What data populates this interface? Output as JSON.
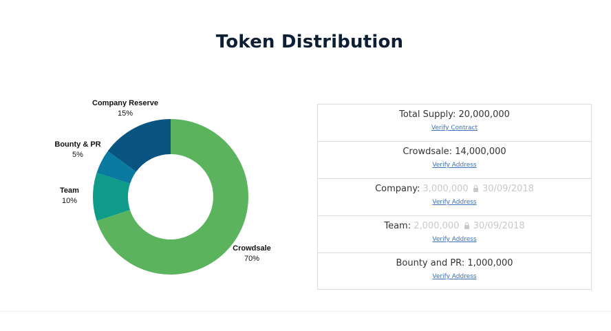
{
  "title": "Token Distribution",
  "chart_data": {
    "type": "pie",
    "variant": "donut",
    "slices": [
      {
        "name": "Crowdsale",
        "value": 70,
        "label": "70%",
        "color": "#5cb35d"
      },
      {
        "name": "Team",
        "value": 10,
        "label": "10%",
        "color": "#0e9b8a"
      },
      {
        "name": "Bounty & PR",
        "value": 5,
        "label": "5%",
        "color": "#0b7aa0"
      },
      {
        "name": "Company Reserve",
        "value": 15,
        "label": "15%",
        "color": "#0a5482"
      }
    ]
  },
  "supply": {
    "rows": [
      {
        "label": "Total Supply:",
        "amount": "20,000,000",
        "locked_amount": "",
        "lock_date": "",
        "link": "Verify Contract"
      },
      {
        "label": "Crowdsale:",
        "amount": "14,000,000",
        "locked_amount": "",
        "lock_date": "",
        "link": "Verify Address"
      },
      {
        "label": "Company:",
        "amount": "",
        "locked_amount": "3,000,000",
        "lock_date": "30/09/2018",
        "link": "Verify Address"
      },
      {
        "label": "Team:",
        "amount": "",
        "locked_amount": "2,000,000",
        "lock_date": "30/09/2018",
        "link": "Verify Address"
      },
      {
        "label": "Bounty and PR:",
        "amount": "1,000,000",
        "locked_amount": "",
        "lock_date": "",
        "link": "Verify Address"
      }
    ]
  }
}
